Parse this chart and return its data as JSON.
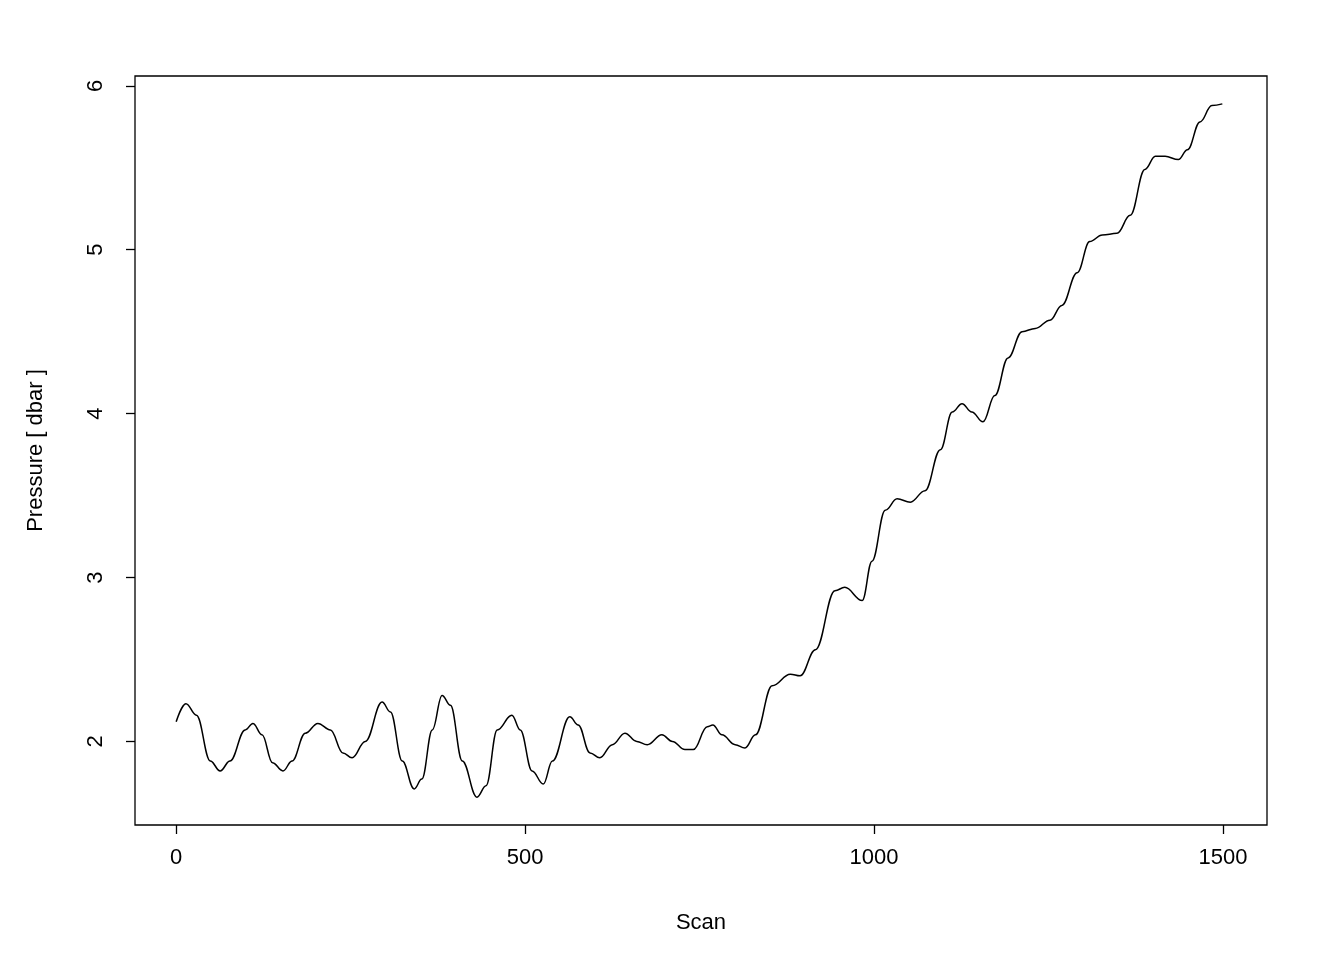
{
  "chart_data": {
    "type": "line",
    "xlabel": "Scan",
    "ylabel": "Pressure [ dbar ]",
    "xlim": [
      -59,
      1563
    ],
    "ylim": [
      1.49,
      6.06
    ],
    "xticks": [
      0,
      500,
      1000,
      1500
    ],
    "yticks": [
      2,
      3,
      4,
      5,
      6
    ],
    "grid": false,
    "marker": "none",
    "line_style": "solid",
    "series": [
      {
        "color": "#000000",
        "x": [
          0,
          14,
          29,
          49,
          63,
          77,
          99,
          110,
          123,
          138,
          153,
          166,
          185,
          203,
          221,
          239,
          252,
          271,
          295,
          307,
          324,
          341,
          352,
          367,
          381,
          393,
          410,
          431,
          444,
          460,
          481,
          493,
          510,
          526,
          539,
          564,
          576,
          593,
          607,
          625,
          643,
          660,
          675,
          696,
          711,
          729,
          741,
          761,
          769,
          782,
          801,
          815,
          830,
          854,
          880,
          894,
          916,
          944,
          958,
          983,
          997,
          1016,
          1033,
          1052,
          1073,
          1095,
          1112,
          1126,
          1140,
          1156,
          1173,
          1192,
          1212,
          1231,
          1252,
          1269,
          1291,
          1309,
          1327,
          1348,
          1367,
          1388,
          1403,
          1417,
          1436,
          1449,
          1467,
          1484,
          1499
        ],
        "values": [
          2.12,
          2.23,
          2.16,
          1.88,
          1.82,
          1.88,
          2.07,
          2.11,
          2.04,
          1.87,
          1.82,
          1.88,
          2.05,
          2.11,
          2.07,
          1.93,
          1.9,
          2.0,
          2.24,
          2.18,
          1.88,
          1.71,
          1.77,
          2.07,
          2.28,
          2.22,
          1.88,
          1.66,
          1.73,
          2.07,
          2.16,
          2.07,
          1.82,
          1.74,
          1.88,
          2.15,
          2.1,
          1.93,
          1.9,
          1.98,
          2.05,
          2.0,
          1.98,
          2.04,
          2.0,
          1.95,
          1.95,
          2.09,
          2.1,
          2.04,
          1.98,
          1.96,
          2.04,
          2.34,
          2.41,
          2.4,
          2.56,
          2.92,
          2.94,
          2.86,
          3.1,
          3.41,
          3.48,
          3.46,
          3.53,
          3.78,
          4.01,
          4.06,
          4.01,
          3.95,
          4.11,
          4.34,
          4.5,
          4.52,
          4.57,
          4.66,
          4.86,
          5.05,
          5.09,
          5.1,
          5.21,
          5.49,
          5.57,
          5.57,
          5.55,
          5.61,
          5.78,
          5.88,
          5.89
        ]
      }
    ]
  }
}
